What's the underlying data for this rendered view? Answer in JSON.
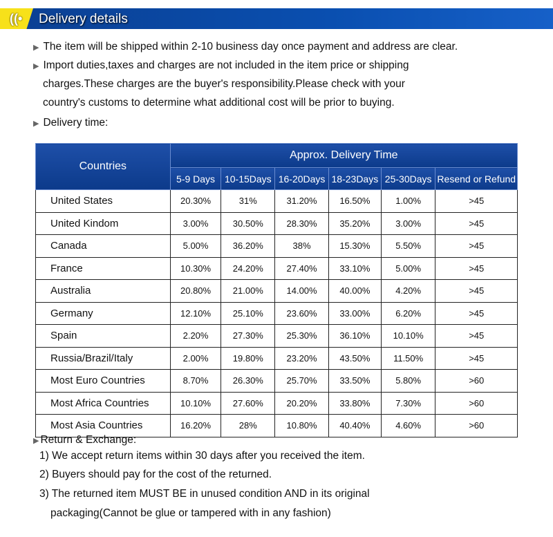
{
  "header": {
    "title": "Delivery details",
    "icon": "delivery-signal-icon",
    "colors": {
      "banner": "#0b3f92",
      "accent": "#f7e11a"
    }
  },
  "intro": [
    "The item will be shipped within 2-10 business day once payment and address are clear.",
    "Import duties,taxes and charges are not included in the item price or shipping",
    "charges.These charges are the buyer's responsibility.Please check with your",
    "country's customs to determine what additional cost will be prior to buying.",
    "Delivery time:"
  ],
  "table": {
    "countries_header": "Countries",
    "group_header": "Approx. Delivery Time",
    "columns": [
      "5-9 Days",
      "10-15Days",
      "16-20Days",
      "18-23Days",
      "25-30Days",
      "Resend or Refund"
    ],
    "rows": [
      {
        "country": "United States",
        "values": [
          "20.30%",
          "31%",
          "31.20%",
          "16.50%",
          "1.00%",
          ">45"
        ]
      },
      {
        "country": "United Kindom",
        "values": [
          "3.00%",
          "30.50%",
          "28.30%",
          "35.20%",
          "3.00%",
          ">45"
        ]
      },
      {
        "country": "Canada",
        "values": [
          "5.00%",
          "36.20%",
          "38%",
          "15.30%",
          "5.50%",
          ">45"
        ]
      },
      {
        "country": "France",
        "values": [
          "10.30%",
          "24.20%",
          "27.40%",
          "33.10%",
          "5.00%",
          ">45"
        ]
      },
      {
        "country": "Australia",
        "values": [
          "20.80%",
          "21.00%",
          "14.00%",
          "40.00%",
          "4.20%",
          ">45"
        ]
      },
      {
        "country": "Germany",
        "values": [
          "12.10%",
          "25.10%",
          "23.60%",
          "33.00%",
          "6.20%",
          ">45"
        ]
      },
      {
        "country": "Spain",
        "values": [
          "2.20%",
          "27.30%",
          "25.30%",
          "36.10%",
          "10.10%",
          ">45"
        ]
      },
      {
        "country": "Russia/Brazil/Italy",
        "values": [
          "2.00%",
          "19.80%",
          "23.20%",
          "43.50%",
          "11.50%",
          ">45"
        ]
      },
      {
        "country": "Most Euro Countries",
        "values": [
          "8.70%",
          "26.30%",
          "25.70%",
          "33.50%",
          "5.80%",
          ">60"
        ]
      },
      {
        "country": "Most Africa Countries",
        "values": [
          "10.10%",
          "27.60%",
          "20.20%",
          "33.80%",
          "7.30%",
          ">60"
        ]
      },
      {
        "country": "Most Asia Countries",
        "values": [
          "16.20%",
          "28%",
          "10.80%",
          "40.40%",
          "4.60%",
          ">60"
        ]
      }
    ]
  },
  "returns": {
    "title": "Return & Exchange:",
    "lines": [
      "1) We accept return items within 30 days after you received the item.",
      "2) Buyers should pay for the cost of the returned.",
      "3) The returned item MUST BE in unused condition AND in its original",
      "packaging(Cannot be glue or tampered with in any fashion)"
    ]
  }
}
